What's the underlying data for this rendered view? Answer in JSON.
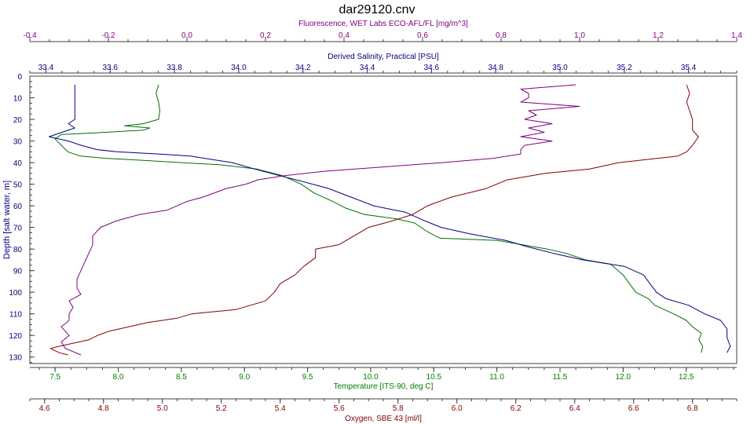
{
  "chart_data": {
    "type": "line",
    "title": "dar29120.cnv",
    "y_axis": {
      "label": "Depth [salt water, m]",
      "range": [
        0,
        133
      ],
      "ticks": [
        0,
        10,
        20,
        30,
        40,
        50,
        60,
        70,
        80,
        90,
        100,
        110,
        120,
        130
      ],
      "color": "#000080"
    },
    "top_axes": [
      {
        "id": "fluorescence",
        "label": "Fluorescence, WET Labs ECO-AFL/FL [mg/m^3]",
        "color": "#800080",
        "range": [
          -0.4,
          1.4
        ],
        "ticks": [
          -0.4,
          -0.2,
          0.0,
          0.2,
          0.4,
          0.6,
          0.8,
          1.0,
          1.2,
          1.4
        ],
        "tick_labels": [
          "-0.4",
          "-0.2",
          "0.0",
          "0.2",
          "0.4",
          "0.6",
          "0.8",
          "1.0",
          "1.2",
          "1.4"
        ]
      },
      {
        "id": "salinity",
        "label": "Derived Salinity, Practical [PSU]",
        "color": "#000080",
        "range": [
          33.35,
          35.55
        ],
        "ticks": [
          33.4,
          33.6,
          33.8,
          34.0,
          34.2,
          34.4,
          34.6,
          34.8,
          35.0,
          35.2,
          35.4
        ],
        "tick_labels": [
          "33.4",
          "33.6",
          "33.8",
          "34.0",
          "34.2",
          "34.4",
          "34.6",
          "34.8",
          "35.0",
          "35.2",
          "35.4"
        ]
      }
    ],
    "bottom_axes": [
      {
        "id": "temperature",
        "label": "Temperature [ITS-90, deg C]",
        "color": "#008000",
        "range": [
          7.3,
          12.9
        ],
        "ticks": [
          7.5,
          8.0,
          8.5,
          9.0,
          9.5,
          10.0,
          10.5,
          11.0,
          11.5,
          12.0,
          12.5
        ],
        "tick_labels": [
          "7.5",
          "8.0",
          "8.5",
          "9.0",
          "9.5",
          "10.0",
          "10.5",
          "11.0",
          "11.5",
          "12.0",
          "12.5"
        ]
      },
      {
        "id": "oxygen",
        "label": "Oxygen, SBE 43 [ml/l]",
        "color": "#800000",
        "range": [
          4.55,
          6.95
        ],
        "ticks": [
          4.6,
          4.8,
          5.0,
          5.2,
          5.4,
          5.6,
          5.8,
          6.0,
          6.2,
          6.4,
          6.6,
          6.8
        ],
        "tick_labels": [
          "4.6",
          "4.8",
          "5.0",
          "5.2",
          "5.4",
          "5.6",
          "5.8",
          "6.0",
          "6.2",
          "6.4",
          "6.6",
          "6.8"
        ]
      }
    ],
    "series": [
      {
        "axis": "temperature",
        "color": "#007000",
        "points": [
          [
            8.32,
            4
          ],
          [
            8.3,
            8
          ],
          [
            8.32,
            12
          ],
          [
            8.33,
            16
          ],
          [
            8.32,
            20
          ],
          [
            8.2,
            22
          ],
          [
            8.05,
            23
          ],
          [
            8.25,
            24
          ],
          [
            8.2,
            25
          ],
          [
            7.9,
            26
          ],
          [
            7.55,
            27
          ],
          [
            7.5,
            29
          ],
          [
            7.55,
            32
          ],
          [
            7.6,
            35
          ],
          [
            7.7,
            37
          ],
          [
            7.9,
            38
          ],
          [
            8.2,
            39
          ],
          [
            8.5,
            40
          ],
          [
            8.8,
            41
          ],
          [
            9.1,
            43
          ],
          [
            9.3,
            46
          ],
          [
            9.45,
            50
          ],
          [
            9.55,
            54
          ],
          [
            9.7,
            58
          ],
          [
            9.8,
            61
          ],
          [
            9.95,
            64
          ],
          [
            10.2,
            66
          ],
          [
            10.35,
            68
          ],
          [
            10.45,
            72
          ],
          [
            10.55,
            75
          ],
          [
            11.0,
            76
          ],
          [
            11.2,
            78
          ],
          [
            11.4,
            80
          ],
          [
            11.55,
            82
          ],
          [
            11.7,
            85
          ],
          [
            11.9,
            87
          ],
          [
            12.0,
            92
          ],
          [
            12.05,
            96
          ],
          [
            12.1,
            100
          ],
          [
            12.2,
            103
          ],
          [
            12.25,
            106
          ],
          [
            12.4,
            110
          ],
          [
            12.5,
            113
          ],
          [
            12.55,
            116
          ],
          [
            12.62,
            119
          ],
          [
            12.6,
            122
          ],
          [
            12.63,
            125
          ],
          [
            12.62,
            128
          ]
        ]
      },
      {
        "axis": "salinity",
        "color": "#000080",
        "points": [
          [
            33.49,
            4
          ],
          [
            33.49,
            8
          ],
          [
            33.49,
            12
          ],
          [
            33.49,
            16
          ],
          [
            33.49,
            20
          ],
          [
            33.47,
            22
          ],
          [
            33.49,
            24
          ],
          [
            33.45,
            26
          ],
          [
            33.41,
            28
          ],
          [
            33.47,
            30
          ],
          [
            33.51,
            32
          ],
          [
            33.56,
            34
          ],
          [
            33.62,
            35
          ],
          [
            33.75,
            36
          ],
          [
            33.85,
            37
          ],
          [
            33.98,
            40
          ],
          [
            34.05,
            43
          ],
          [
            34.1,
            45
          ],
          [
            34.18,
            48
          ],
          [
            34.28,
            52
          ],
          [
            34.35,
            56
          ],
          [
            34.42,
            60
          ],
          [
            34.52,
            63
          ],
          [
            34.58,
            67
          ],
          [
            34.63,
            70
          ],
          [
            34.72,
            73
          ],
          [
            34.83,
            76
          ],
          [
            34.9,
            79
          ],
          [
            34.98,
            82
          ],
          [
            35.07,
            85
          ],
          [
            35.2,
            88
          ],
          [
            35.26,
            92
          ],
          [
            35.28,
            96
          ],
          [
            35.3,
            100
          ],
          [
            35.33,
            103
          ],
          [
            35.4,
            106
          ],
          [
            35.45,
            110
          ],
          [
            35.5,
            113
          ],
          [
            35.52,
            117
          ],
          [
            35.52,
            121
          ],
          [
            35.53,
            125
          ],
          [
            35.52,
            128
          ]
        ]
      },
      {
        "axis": "fluorescence",
        "color": "#800080",
        "points": [
          [
            0.99,
            4
          ],
          [
            0.85,
            6
          ],
          [
            0.87,
            8
          ],
          [
            0.87,
            10
          ],
          [
            0.85,
            12
          ],
          [
            1.0,
            14
          ],
          [
            0.87,
            16
          ],
          [
            0.89,
            18
          ],
          [
            0.86,
            20
          ],
          [
            0.93,
            22
          ],
          [
            0.87,
            24
          ],
          [
            0.91,
            26
          ],
          [
            0.85,
            28
          ],
          [
            0.93,
            30
          ],
          [
            0.86,
            32
          ],
          [
            0.85,
            34
          ],
          [
            0.85,
            36
          ],
          [
            0.78,
            38
          ],
          [
            0.65,
            40
          ],
          [
            0.5,
            42
          ],
          [
            0.35,
            44
          ],
          [
            0.25,
            46
          ],
          [
            0.18,
            48
          ],
          [
            0.15,
            50
          ],
          [
            0.1,
            52
          ],
          [
            0.07,
            54
          ],
          [
            0.04,
            56
          ],
          [
            0.0,
            58
          ],
          [
            -0.05,
            62
          ],
          [
            -0.12,
            64
          ],
          [
            -0.18,
            67
          ],
          [
            -0.22,
            70
          ],
          [
            -0.24,
            74
          ],
          [
            -0.24,
            78
          ],
          [
            -0.25,
            82
          ],
          [
            -0.26,
            86
          ],
          [
            -0.27,
            90
          ],
          [
            -0.28,
            94
          ],
          [
            -0.28,
            98
          ],
          [
            -0.27,
            101
          ],
          [
            -0.3,
            104
          ],
          [
            -0.29,
            107
          ],
          [
            -0.3,
            110
          ],
          [
            -0.3,
            113
          ],
          [
            -0.32,
            116
          ],
          [
            -0.3,
            120
          ],
          [
            -0.32,
            123
          ],
          [
            -0.31,
            126
          ],
          [
            -0.27,
            129
          ]
        ]
      },
      {
        "axis": "oxygen",
        "color": "#800000",
        "points": [
          [
            6.78,
            4
          ],
          [
            6.79,
            8
          ],
          [
            6.78,
            12
          ],
          [
            6.79,
            16
          ],
          [
            6.8,
            20
          ],
          [
            6.8,
            25
          ],
          [
            6.82,
            28
          ],
          [
            6.8,
            32
          ],
          [
            6.78,
            35
          ],
          [
            6.75,
            37
          ],
          [
            6.55,
            40
          ],
          [
            6.45,
            43
          ],
          [
            6.3,
            45
          ],
          [
            6.17,
            48
          ],
          [
            6.1,
            52
          ],
          [
            5.98,
            56
          ],
          [
            5.9,
            60
          ],
          [
            5.85,
            64
          ],
          [
            5.78,
            67
          ],
          [
            5.7,
            70
          ],
          [
            5.65,
            74
          ],
          [
            5.6,
            78
          ],
          [
            5.52,
            80
          ],
          [
            5.52,
            84
          ],
          [
            5.48,
            88
          ],
          [
            5.45,
            92
          ],
          [
            5.4,
            96
          ],
          [
            5.38,
            100
          ],
          [
            5.35,
            104
          ],
          [
            5.25,
            108
          ],
          [
            5.1,
            110
          ],
          [
            5.05,
            112
          ],
          [
            4.95,
            114
          ],
          [
            4.82,
            118
          ],
          [
            4.78,
            120
          ],
          [
            4.75,
            122
          ],
          [
            4.65,
            125
          ],
          [
            4.62,
            126
          ],
          [
            4.65,
            128
          ],
          [
            4.68,
            129
          ]
        ]
      }
    ]
  }
}
